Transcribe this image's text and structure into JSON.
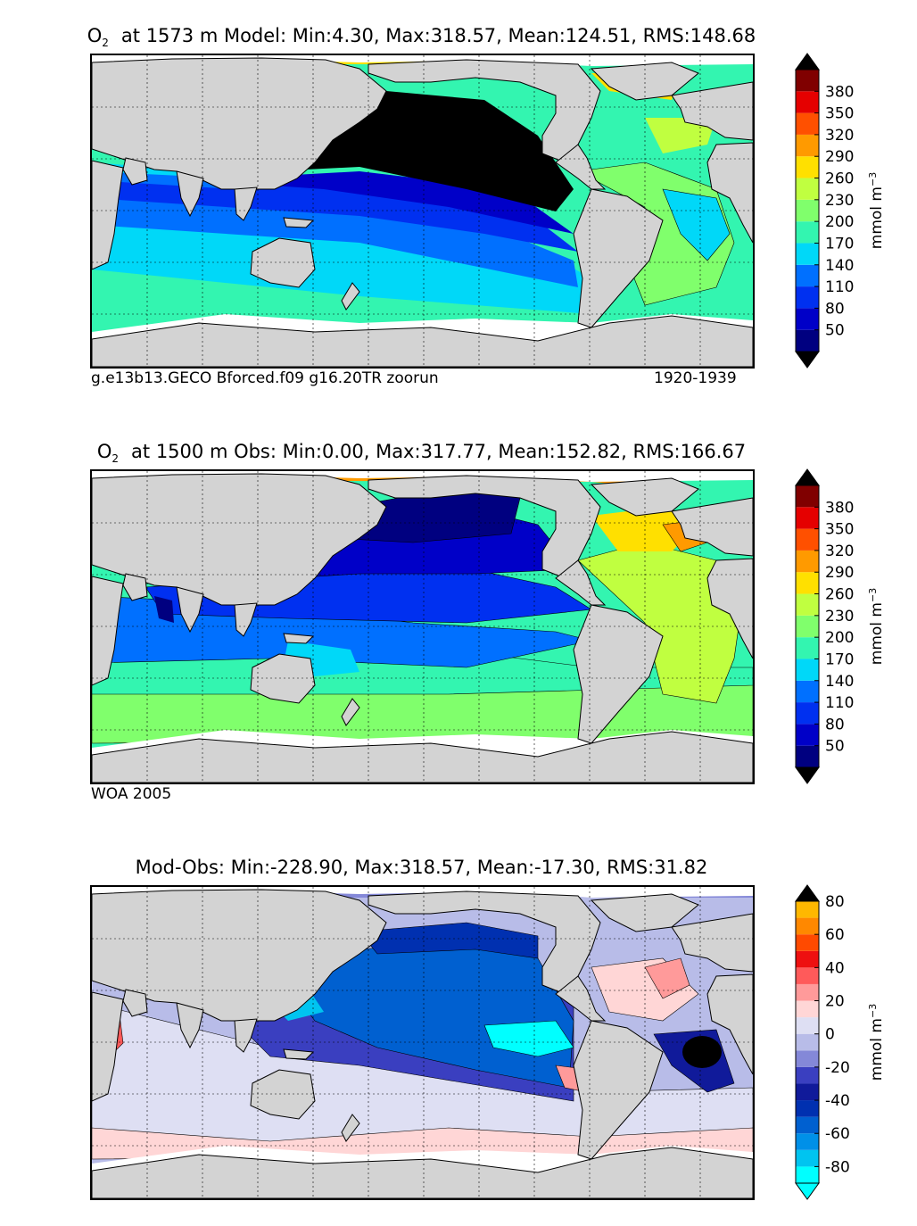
{
  "panels": [
    {
      "id": "model",
      "title_main": "at 1573 m Model: Min:4.30, Max:318.57, Mean:124.51, RMS:148.68",
      "caption_left": "g.e13b13.GECO Bforced.f09 g16.20TR zoorun",
      "caption_right": "1920-1939"
    },
    {
      "id": "obs",
      "title_main": "at 1500 m Obs: Min:0.00, Max:317.77, Mean:152.82, RMS:166.67",
      "caption_left": "WOA 2005",
      "caption_right": ""
    },
    {
      "id": "diff",
      "title_main": "Mod-Obs: Min:-228.90, Max:318.57, Mean:-17.30, RMS:31.82",
      "caption_left": "",
      "caption_right": ""
    }
  ],
  "species_label": "O",
  "species_subscript": "2",
  "colorbar_units": "mmol m",
  "colorbar_units_exponent": "−3",
  "chart_data": [
    {
      "type": "heatmap",
      "title": "O2 at 1573 m Model: Min:4.30, Max:318.57, Mean:124.51, RMS:148.68",
      "source": "g.e13b13.GECO Bforced.f09 g16.20TR zoorun",
      "period": "1920-1939",
      "stats": {
        "min": 4.3,
        "max": 318.57,
        "mean": 124.51,
        "rms": 148.68
      },
      "colorbar": {
        "units": "mmol m^-3",
        "levels": [
          20,
          50,
          80,
          110,
          140,
          170,
          200,
          230,
          260,
          290,
          320,
          350,
          380,
          410
        ],
        "tick_labels": [
          "50",
          "80",
          "110",
          "140",
          "170",
          "200",
          "230",
          "260",
          "290",
          "320",
          "350",
          "380"
        ],
        "colors": [
          "#000080",
          "#0000c8",
          "#0030f0",
          "#0070ff",
          "#00d8f8",
          "#33f5b0",
          "#80ff6c",
          "#c0ff40",
          "#ffe000",
          "#ff9a00",
          "#ff5000",
          "#e50000",
          "#800000"
        ],
        "extend": "both",
        "under_color": "#000000",
        "over_color": "#000000"
      }
    },
    {
      "type": "heatmap",
      "title": "O2 at 1500 m Obs: Min:0.00, Max:317.77, Mean:152.82, RMS:166.67",
      "source": "WOA 2005",
      "stats": {
        "min": 0.0,
        "max": 317.77,
        "mean": 152.82,
        "rms": 166.67
      },
      "colorbar": {
        "units": "mmol m^-3",
        "levels": [
          20,
          50,
          80,
          110,
          140,
          170,
          200,
          230,
          260,
          290,
          320,
          350,
          380,
          410
        ],
        "tick_labels": [
          "50",
          "80",
          "110",
          "140",
          "170",
          "200",
          "230",
          "260",
          "290",
          "320",
          "350",
          "380"
        ],
        "colors": [
          "#000080",
          "#0000c8",
          "#0030f0",
          "#0070ff",
          "#00d8f8",
          "#33f5b0",
          "#80ff6c",
          "#c0ff40",
          "#ffe000",
          "#ff9a00",
          "#ff5000",
          "#e50000",
          "#800000"
        ],
        "extend": "both",
        "under_color": "#000000",
        "over_color": "#000000"
      }
    },
    {
      "type": "heatmap",
      "title": "Mod-Obs: Min:-228.90, Max:318.57, Mean:-17.30, RMS:31.82",
      "stats": {
        "min": -228.9,
        "max": 318.57,
        "mean": -17.3,
        "rms": 31.82
      },
      "colorbar": {
        "units": "mmol m^-3",
        "levels": [
          -90,
          -80,
          -70,
          -60,
          -50,
          -40,
          -30,
          -20,
          -10,
          0,
          10,
          20,
          30,
          40,
          50,
          60,
          70,
          80
        ],
        "tick_labels": [
          "-80",
          "-60",
          "-40",
          "-20",
          "0",
          "20",
          "40",
          "60",
          "80"
        ],
        "colors": [
          "#00ffff",
          "#00c4f0",
          "#0090e8",
          "#0060d0",
          "#0030b0",
          "#101a9a",
          "#3a3fc0",
          "#8488d8",
          "#b8bce8",
          "#dedff3",
          "#ffd6d6",
          "#ff9a9a",
          "#ff5a5a",
          "#ee1010",
          "#ff4a00",
          "#ff8800",
          "#ffb800",
          "#ffff22"
        ],
        "extend": "both",
        "under_color": "#00ffff",
        "over_color": "#000000"
      }
    }
  ],
  "colors": {
    "land": "#d3d3d3",
    "ice": "#ffffff",
    "frame": "#000000"
  }
}
